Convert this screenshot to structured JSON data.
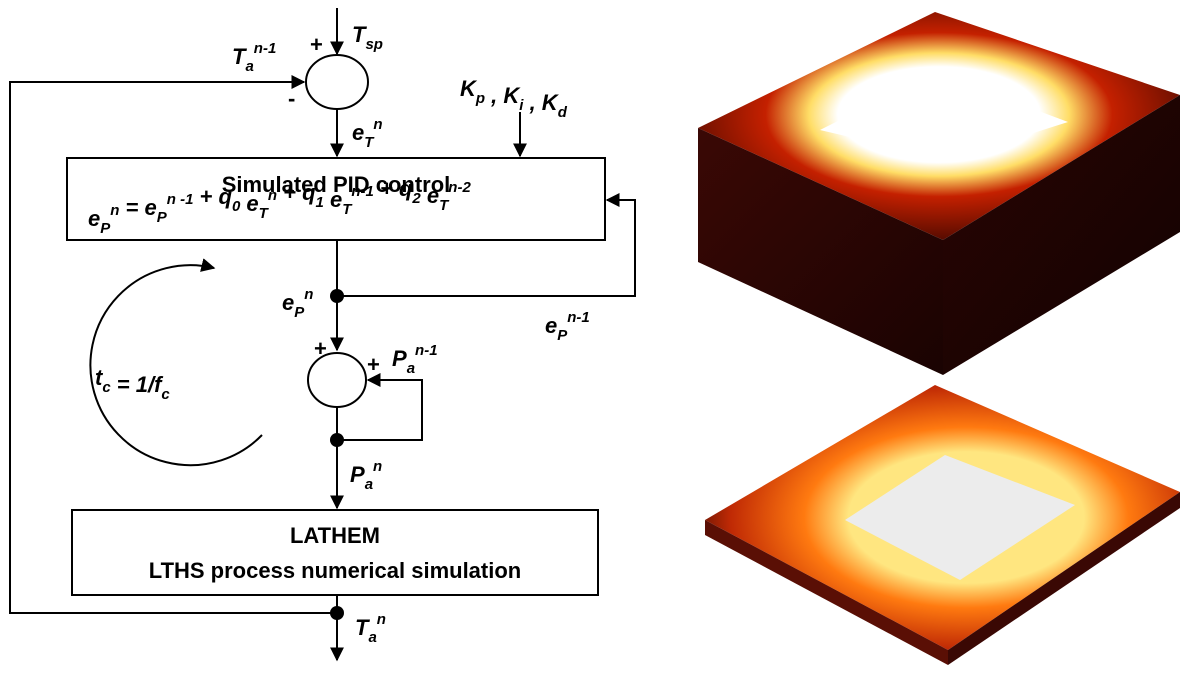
{
  "signals": {
    "setpoint": [
      {
        "t": "T",
        "sub": "sp"
      }
    ],
    "feedback": [
      {
        "t": "T",
        "sub": "a",
        "sup": "n-1"
      }
    ],
    "gains": [
      {
        "t": "K",
        "sub": "p"
      },
      {
        "t": " , K",
        "sub": "i"
      },
      {
        "t": " , K",
        "sub": "d"
      }
    ],
    "error": [
      {
        "t": "e",
        "sub": "T",
        "sup": "n"
      }
    ],
    "pid_output": [
      {
        "t": "e",
        "sub": "P",
        "sup": "n"
      }
    ],
    "pid_previous": [
      {
        "t": "e",
        "sub": "P",
        "sup": "n-1"
      }
    ],
    "power_previous": [
      {
        "t": "P",
        "sub": "a",
        "sup": "n-1"
      }
    ],
    "power": [
      {
        "t": "P",
        "sub": "a",
        "sup": "n"
      }
    ],
    "temperature": [
      {
        "t": "T",
        "sub": "a",
        "sup": "n"
      }
    ],
    "cycle_time": [
      {
        "t": "t",
        "sub": "c"
      },
      {
        "t": " = 1/f",
        "sub": "c"
      }
    ]
  },
  "signs": {
    "sum1_plus": "+",
    "sum1_minus": "-",
    "sum2_plus_top": "+",
    "sum2_plus_right": "+"
  },
  "blocks": {
    "pid": {
      "title": "Simulated PID control",
      "equation": [
        {
          "t": "e",
          "sub": "P",
          "sup": "n"
        },
        {
          "t": " = e",
          "sub": "P",
          "sup": "n -1"
        },
        {
          "t": " + q",
          "sub": "0"
        },
        {
          "t": " e",
          "sub": "T",
          "sup": "n"
        },
        {
          "t": " + q",
          "sub": "1"
        },
        {
          "t": " e",
          "sub": "T",
          "sup": "n-1"
        },
        {
          "t": " + q",
          "sub": "2"
        },
        {
          "t": " e",
          "sub": "T",
          "sup": "n-2"
        }
      ]
    },
    "lathem": {
      "title": "LATHEM",
      "subtitle": "LTHS process numerical simulation"
    }
  }
}
